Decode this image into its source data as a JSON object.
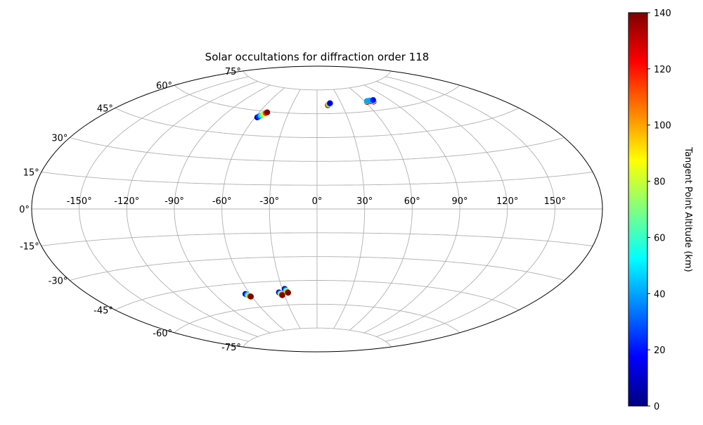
{
  "chart_data": {
    "type": "scatter",
    "projection": "aitoff",
    "title": "Solar occultations for diffraction order 118",
    "longitude_ticks": [
      "-150°",
      "-120°",
      "-90°",
      "-60°",
      "-30°",
      "0°",
      "30°",
      "60°",
      "90°",
      "120°",
      "150°"
    ],
    "latitude_ticks": [
      "75°",
      "60°",
      "45°",
      "30°",
      "15°",
      "0°",
      "-15°",
      "-30°",
      "-45°",
      "-60°",
      "-75°"
    ],
    "grid": true,
    "colorbar": {
      "label": "Tangent Point Altitude (km)",
      "range": [
        0,
        140
      ],
      "ticks": [
        "0",
        "20",
        "40",
        "60",
        "80",
        "100",
        "120",
        "140"
      ],
      "colormap": "jet",
      "colors": [
        "#000080",
        "#0000ff",
        "#0080ff",
        "#00ffff",
        "#80ff80",
        "#ffff00",
        "#ff8000",
        "#ff0000",
        "#800000"
      ]
    },
    "series": [
      {
        "lon": [
          -58,
          -57,
          -56,
          -55,
          -54,
          -53,
          -52
        ],
        "lat": [
          56,
          56.6,
          57.2,
          57.8,
          58.4,
          59,
          59.5
        ],
        "altitude": [
          5,
          25,
          45,
          65,
          90,
          115,
          140
        ]
      },
      {
        "lon": [
          13,
          13.5,
          14.5,
          15.5,
          16.2
        ],
        "lat": [
          65.3,
          65.6,
          65.9,
          66.2,
          66.5
        ],
        "altitude": [
          140,
          110,
          80,
          45,
          15
        ]
      },
      {
        "lon": [
          62,
          62.5,
          63
        ],
        "lat": [
          65.6,
          65.9,
          66.1
        ],
        "altitude": [
          140,
          90,
          40
        ]
      },
      {
        "lon": [
          66,
          66.5,
          67
        ],
        "lat": [
          65.7,
          66,
          66.2
        ],
        "altitude": [
          140,
          90,
          40
        ]
      },
      {
        "lon": [
          70,
          70.5,
          71,
          71.5
        ],
        "lat": [
          65.3,
          65.6,
          65.9,
          66.2
        ],
        "altitude": [
          140,
          100,
          60,
          20
        ]
      },
      {
        "lon": [
          -64,
          -63.5,
          -63,
          -62.5,
          -62,
          -61.5,
          -61
        ],
        "lat": [
          -51.5,
          -51.8,
          -52.1,
          -52.4,
          -52.7,
          -53,
          -53.3
        ],
        "altitude": [
          5,
          20,
          40,
          60,
          85,
          110,
          140
        ]
      },
      {
        "lon": [
          -34,
          -33.7,
          -33.3,
          -33,
          -32.7,
          -32.3,
          -32
        ],
        "lat": [
          -52,
          -52.3,
          -52.6,
          -52.9,
          -53.2,
          -53.5,
          -53.8
        ],
        "altitude": [
          5,
          20,
          40,
          60,
          85,
          110,
          140
        ]
      },
      {
        "lon": [
          -28,
          -27.7,
          -27.3,
          -27,
          -26.7,
          -26.3,
          -26
        ],
        "lat": [
          -50,
          -50.4,
          -50.8,
          -51.2,
          -51.6,
          -52,
          -52.4
        ],
        "altitude": [
          5,
          20,
          40,
          60,
          85,
          110,
          140
        ]
      }
    ]
  }
}
